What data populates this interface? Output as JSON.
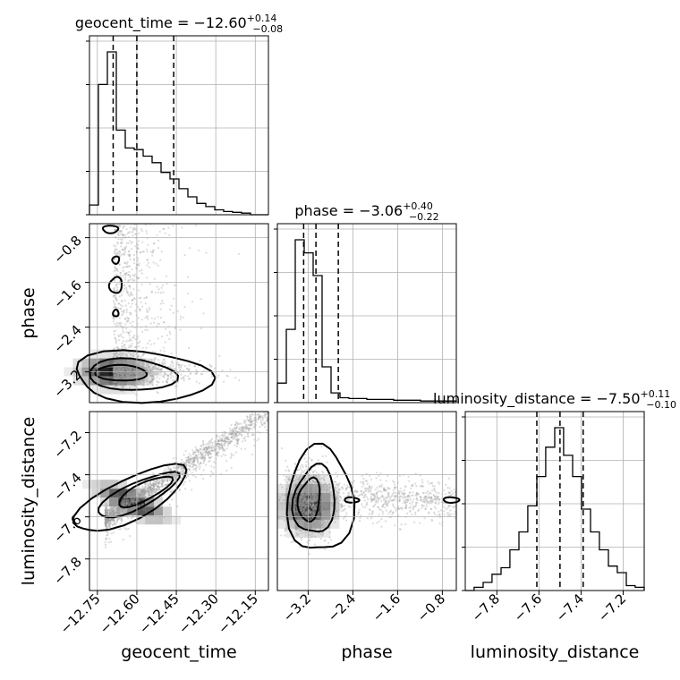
{
  "chart_data": {
    "type": "corner",
    "parameters": [
      "geocent_time",
      "phase",
      "luminosity_distance"
    ],
    "axes": {
      "geocent_time": {
        "range": [
          -12.78,
          -12.1
        ],
        "ticks": [
          -12.75,
          -12.6,
          -12.45,
          -12.3,
          -12.15
        ],
        "tick_labels": [
          "−12.75",
          "−12.60",
          "−12.45",
          "−12.30",
          "−12.15"
        ],
        "label": "geocent_time"
      },
      "phase": {
        "range": [
          -3.75,
          -0.55
        ],
        "ticks": [
          -3.2,
          -2.4,
          -1.6,
          -0.8
        ],
        "tick_labels": [
          "−3.2",
          "−2.4",
          "−1.6",
          "−0.8"
        ],
        "label": "phase"
      },
      "luminosity_distance": {
        "range": [
          -7.95,
          -7.1
        ],
        "ticks": [
          -7.8,
          -7.6,
          -7.4,
          -7.2
        ],
        "tick_labels": [
          "−7.8",
          "−7.6",
          "−7.4",
          "−7.2"
        ],
        "label": "luminosity_distance"
      }
    },
    "titles": [
      {
        "param": "geocent_time",
        "label": "geocent_time = −12.60",
        "plus": "+0.14",
        "minus": "−0.08"
      },
      {
        "param": "phase",
        "label": "phase = −3.06",
        "plus": "+0.40",
        "minus": "−0.22"
      },
      {
        "param": "luminosity_distance",
        "label": "luminosity_distance = −7.50",
        "plus": "+0.11",
        "minus": "−0.10"
      }
    ],
    "histograms": {
      "geocent_time": {
        "bin_edges": [
          -12.78,
          -12.746,
          -12.712,
          -12.678,
          -12.644,
          -12.61,
          -12.576,
          -12.542,
          -12.508,
          -12.474,
          -12.44,
          -12.406,
          -12.372,
          -12.338,
          -12.304,
          -12.27,
          -12.236,
          -12.202,
          -12.168,
          -12.134,
          -12.1
        ],
        "counts": [
          0.06,
          0.8,
          1.0,
          0.52,
          0.41,
          0.4,
          0.36,
          0.32,
          0.26,
          0.22,
          0.16,
          0.11,
          0.07,
          0.05,
          0.03,
          0.02,
          0.015,
          0.01,
          0.0,
          0.0
        ],
        "quantiles": [
          -12.69,
          -12.6,
          -12.46
        ]
      },
      "phase": {
        "bin_edges": [
          -3.75,
          -3.59,
          -3.43,
          -3.27,
          -3.11,
          -2.95,
          -2.79,
          -2.63,
          -2.47,
          -2.31,
          -2.15,
          -1.99,
          -1.83,
          -1.67,
          -1.51,
          -1.35,
          -1.19,
          -1.03,
          -0.87,
          -0.71,
          -0.55
        ],
        "counts": [
          0.12,
          0.45,
          1.0,
          0.92,
          0.78,
          0.22,
          0.06,
          0.03,
          0.025,
          0.025,
          0.02,
          0.02,
          0.02,
          0.015,
          0.015,
          0.015,
          0.01,
          0.01,
          0.01,
          0.01
        ],
        "quantiles": [
          -3.28,
          -3.06,
          -2.66
        ]
      },
      "luminosity_distance": {
        "bin_edges": [
          -7.95,
          -7.908,
          -7.865,
          -7.823,
          -7.78,
          -7.738,
          -7.695,
          -7.653,
          -7.61,
          -7.568,
          -7.525,
          -7.483,
          -7.44,
          -7.398,
          -7.355,
          -7.313,
          -7.27,
          -7.228,
          -7.185,
          -7.143,
          -7.1
        ],
        "counts": [
          0.0,
          0.02,
          0.05,
          0.1,
          0.14,
          0.25,
          0.36,
          0.52,
          0.7,
          0.88,
          1.0,
          0.83,
          0.7,
          0.5,
          0.36,
          0.25,
          0.15,
          0.11,
          0.03,
          0.02
        ],
        "quantiles": [
          -7.61,
          -7.5,
          -7.39
        ]
      }
    },
    "gridlines": true,
    "pairs": [
      {
        "x": "geocent_time",
        "y": "phase",
        "mode_x": -12.69,
        "mode_y": -3.2
      },
      {
        "x": "geocent_time",
        "y": "luminosity_distance",
        "mode_x": -12.62,
        "mode_y": -7.53
      },
      {
        "x": "phase",
        "y": "luminosity_distance",
        "mode_x": -3.2,
        "mode_y": -7.55
      }
    ]
  }
}
